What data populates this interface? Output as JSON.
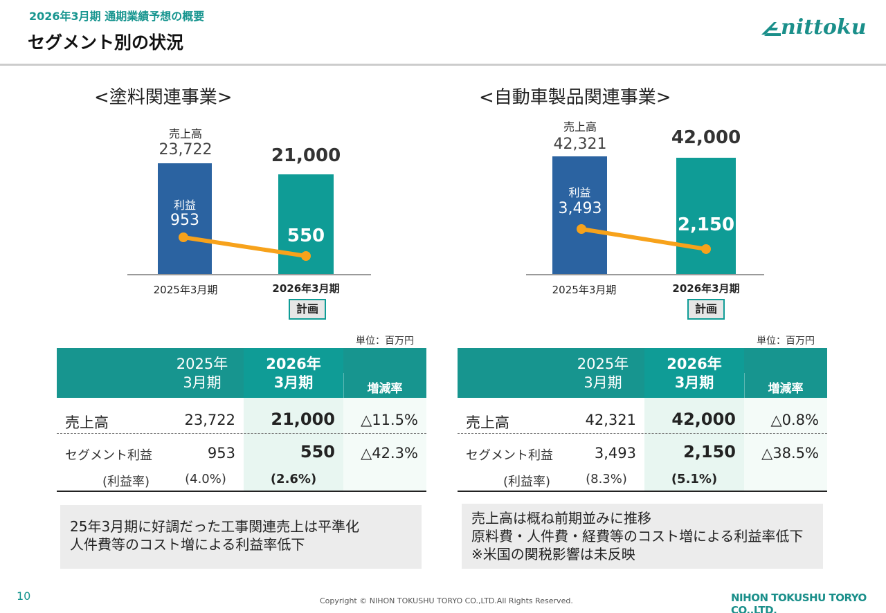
{
  "header": {
    "supertitle": "2026年3月期 通期業績予想の概要",
    "title": "セグメント別の状況",
    "logo_text": "nittoku"
  },
  "colors": {
    "accent": "#17958f",
    "bar_prev": "#2b63a1",
    "bar_plan": "#0f9c96",
    "profit_line": "#f7a21b",
    "plan_highlight": "#e8f6f1"
  },
  "left": {
    "title": "<塗料関連事業>",
    "sales_label": "売上高",
    "profit_label": "利益",
    "prev_sales": "23,722",
    "plan_sales": "21,000",
    "prev_profit": "953",
    "plan_profit": "550",
    "prev_period": "2025年3月期",
    "plan_period": "2026年3月期",
    "plan_tag": "計画",
    "unit": "単位：百万円",
    "table": {
      "col_prev": [
        "2025年",
        "3月期"
      ],
      "col_plan": [
        "2026年",
        "3月期"
      ],
      "col_change": "増減率",
      "rows": [
        {
          "label": "売上高",
          "prev": "23,722",
          "plan": "21,000",
          "change": "△11.5%"
        },
        {
          "label": "セグメント利益",
          "prev": "953",
          "plan": "550",
          "change": "△42.3%"
        }
      ],
      "ratio": {
        "label": "(利益率)",
        "prev": "(4.0%)",
        "plan": "(2.6%)"
      }
    },
    "note": [
      "25年3月期に好調だった工事関連売上は平準化",
      "人件費等のコスト増による利益率低下"
    ]
  },
  "right": {
    "title": "<自動車製品関連事業>",
    "sales_label": "売上高",
    "profit_label": "利益",
    "prev_sales": "42,321",
    "plan_sales": "42,000",
    "prev_profit": "3,493",
    "plan_profit": "2,150",
    "prev_period": "2025年3月期",
    "plan_period": "2026年3月期",
    "plan_tag": "計画",
    "unit": "単位：百万円",
    "table": {
      "col_prev": [
        "2025年",
        "3月期"
      ],
      "col_plan": [
        "2026年",
        "3月期"
      ],
      "col_change": "増減率",
      "rows": [
        {
          "label": "売上高",
          "prev": "42,321",
          "plan": "42,000",
          "change": "△0.8%"
        },
        {
          "label": "セグメント利益",
          "prev": "3,493",
          "plan": "2,150",
          "change": "△38.5%"
        }
      ],
      "ratio": {
        "label": "(利益率)",
        "prev": "(8.3%)",
        "plan": "(5.1%)"
      }
    },
    "note": [
      "売上高は概ね前期並みに推移",
      "原料費・人件費・経費等のコスト増による利益率低下",
      "※米国の関税影響は未反映"
    ]
  },
  "chart_data": [
    {
      "type": "bar",
      "title": "<塗料関連事業>",
      "categories": [
        "2025年3月期",
        "2026年3月期"
      ],
      "series": [
        {
          "name": "売上高",
          "values": [
            23722,
            21000
          ]
        },
        {
          "name": "利益",
          "values": [
            953,
            550
          ]
        }
      ]
    },
    {
      "type": "bar",
      "title": "<自動車製品関連事業>",
      "categories": [
        "2025年3月期",
        "2026年3月期"
      ],
      "series": [
        {
          "name": "売上高",
          "values": [
            42321,
            42000
          ]
        },
        {
          "name": "利益",
          "values": [
            3493,
            2150
          ]
        }
      ]
    }
  ],
  "footer": {
    "page_number": "10",
    "copyright": "Copyright © NIHON TOKUSHU TORYO CO.,LTD.All Rights Reserved.",
    "company": "NIHON TOKUSHU TORYO CO.,LTD."
  }
}
